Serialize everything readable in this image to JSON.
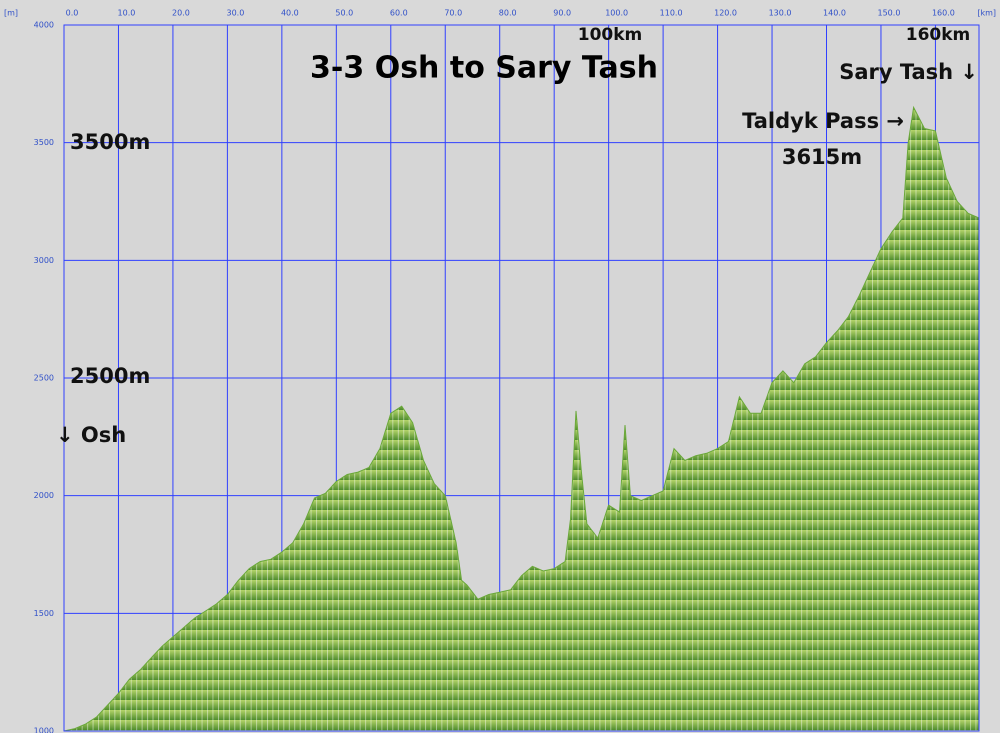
{
  "chart_data": {
    "type": "area",
    "title": "3-3 Osh to Sary Tash",
    "x_unit": "[km]",
    "y_unit": "[m]",
    "annotations": [
      "100km",
      "160km",
      "Sary Tash ↓",
      "Taldyk Pass →",
      "3615m",
      "3500m",
      "2500m",
      "↓ Osh"
    ],
    "x": [
      0,
      2,
      4,
      6,
      8,
      10,
      12,
      14,
      16,
      18,
      20,
      22,
      24,
      26,
      28,
      30,
      32,
      34,
      36,
      38,
      40,
      42,
      44,
      46,
      48,
      50,
      52,
      54,
      56,
      58,
      60,
      62,
      64,
      66,
      68,
      70,
      72,
      73,
      74,
      76,
      78,
      80,
      82,
      84,
      86,
      88,
      90,
      92,
      93,
      94,
      95,
      96,
      98,
      100,
      102,
      103,
      104,
      106,
      108,
      110,
      112,
      114,
      116,
      118,
      120,
      122,
      124,
      126,
      128,
      130,
      132,
      134,
      136,
      138,
      140,
      142,
      144,
      146,
      148,
      150,
      152,
      154,
      155,
      156,
      158,
      160,
      162,
      164,
      166,
      168
    ],
    "values": [
      1000,
      1010,
      1030,
      1060,
      1110,
      1160,
      1220,
      1260,
      1310,
      1360,
      1400,
      1440,
      1480,
      1510,
      1540,
      1580,
      1640,
      1690,
      1720,
      1730,
      1760,
      1800,
      1880,
      1990,
      2010,
      2060,
      2090,
      2100,
      2120,
      2200,
      2350,
      2380,
      2310,
      2150,
      2050,
      2000,
      1800,
      1640,
      1620,
      1560,
      1580,
      1590,
      1600,
      1660,
      1700,
      1680,
      1690,
      1720,
      1900,
      2360,
      2100,
      1880,
      1820,
      1960,
      1930,
      2300,
      2000,
      1980,
      2000,
      2020,
      2200,
      2150,
      2170,
      2180,
      2200,
      2230,
      2420,
      2350,
      2350,
      2480,
      2530,
      2480,
      2560,
      2590,
      2650,
      2700,
      2760,
      2850,
      2950,
      3050,
      3120,
      3180,
      3500,
      3650,
      3560,
      3550,
      3350,
      3250,
      3200,
      3180
    ],
    "color": "#6aa83a",
    "xlim": [
      0,
      168
    ],
    "ylim": [
      1000,
      4000
    ],
    "xticks": [
      {
        "value": 0,
        "label": "0.0"
      },
      {
        "value": 10,
        "label": "10.0"
      },
      {
        "value": 20,
        "label": "20.0"
      },
      {
        "value": 30,
        "label": "30.0"
      },
      {
        "value": 40,
        "label": "40.0"
      },
      {
        "value": 50,
        "label": "50.0"
      },
      {
        "value": 60,
        "label": "60.0"
      },
      {
        "value": 70,
        "label": "70.0"
      },
      {
        "value": 80,
        "label": "80.0"
      },
      {
        "value": 90,
        "label": "90.0"
      },
      {
        "value": 100,
        "label": "100.0"
      },
      {
        "value": 110,
        "label": "110.0"
      },
      {
        "value": 120,
        "label": "120.0"
      },
      {
        "value": 130,
        "label": "130.0"
      },
      {
        "value": 140,
        "label": "140.0"
      },
      {
        "value": 150,
        "label": "150.0"
      },
      {
        "value": 160,
        "label": "160.0"
      }
    ],
    "yticks": [
      1000,
      1500,
      2000,
      2500,
      3000,
      3500,
      4000
    ],
    "grid": true
  }
}
